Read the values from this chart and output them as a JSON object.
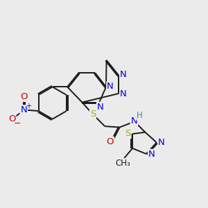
{
  "bg_color": "#ebebeb",
  "bond_color": "#1a1a1a",
  "bw": 1.4,
  "dbo": 0.055,
  "colors": {
    "N": "#0000dd",
    "O": "#cc0000",
    "S": "#aaaa00",
    "H": "#4a8888",
    "C": "#1a1a1a"
  },
  "fs": 9.0
}
